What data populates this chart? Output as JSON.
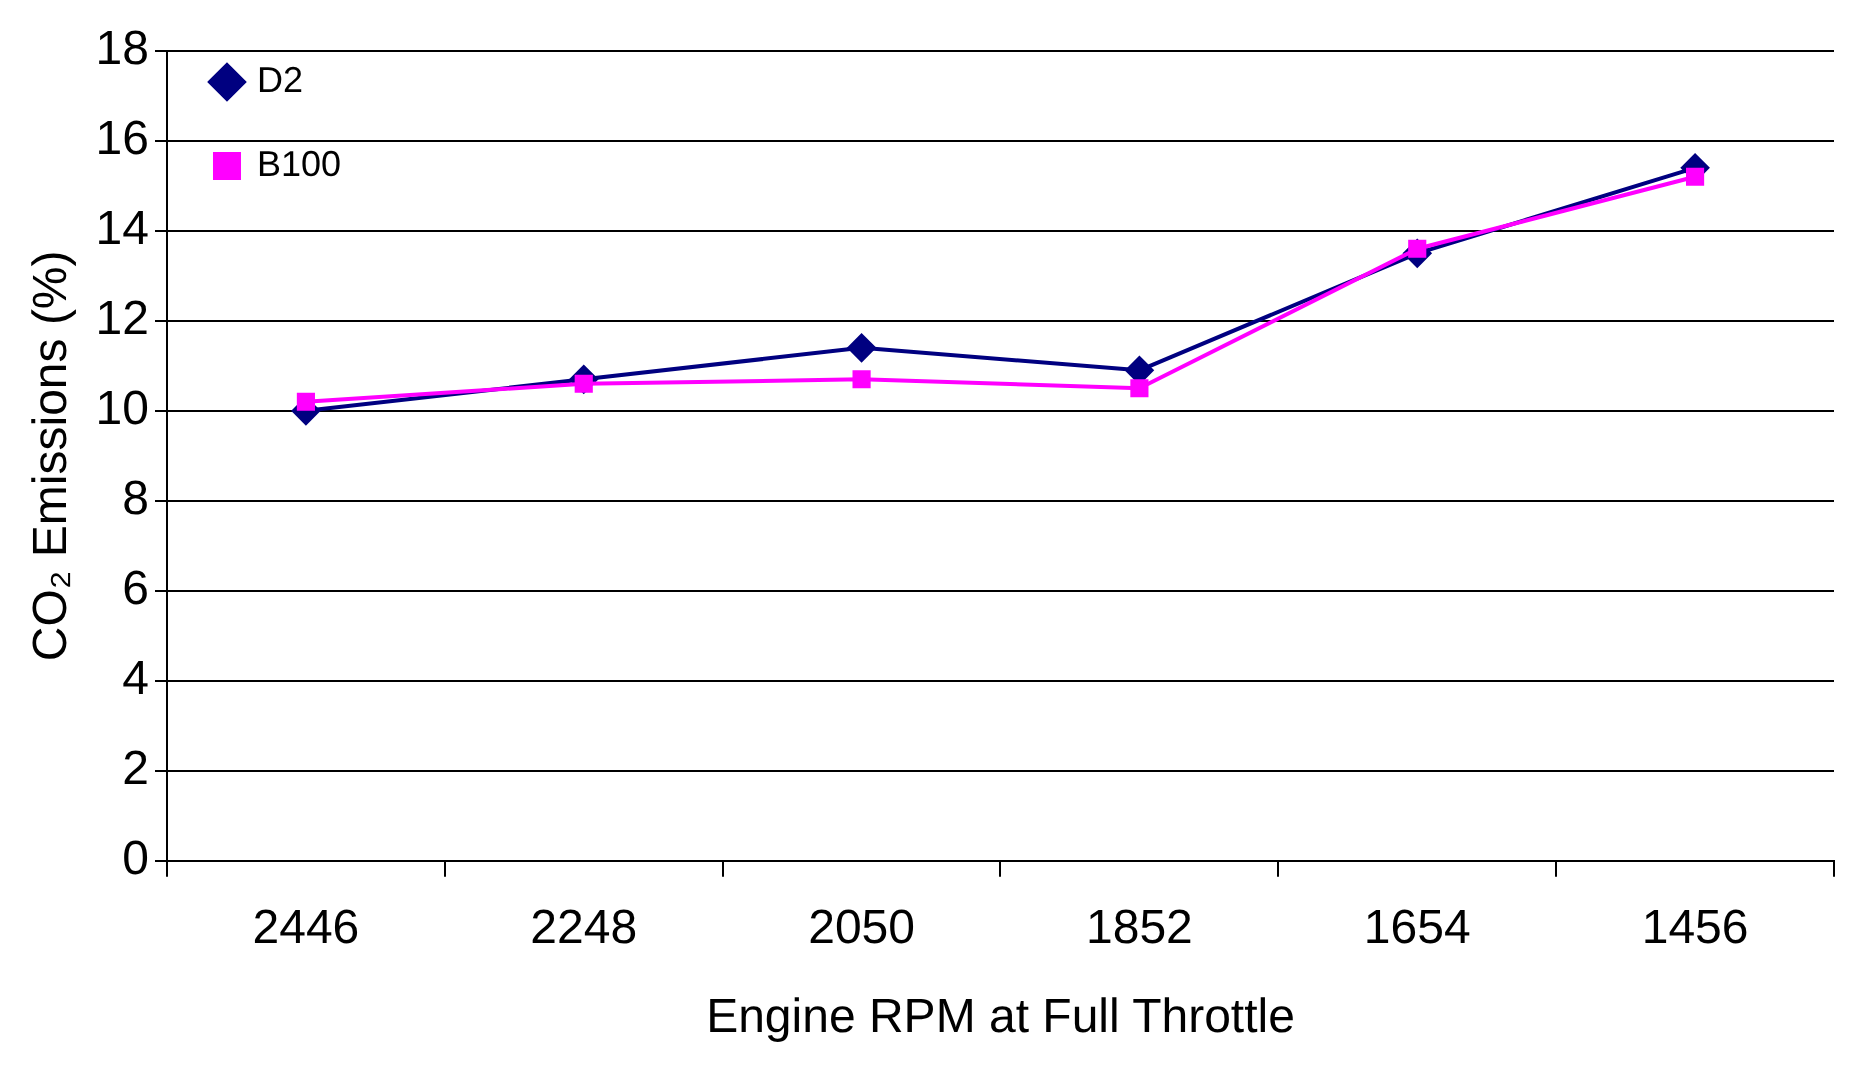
{
  "chart_data": {
    "type": "line",
    "xlabel": "Engine RPM at Full Throttle",
    "ylabel": "CO₂ Emissions (%)",
    "categories": [
      "2446",
      "2248",
      "2050",
      "1852",
      "1654",
      "1456"
    ],
    "series": [
      {
        "name": "D2",
        "color": "#000080",
        "marker": "diamond",
        "values": [
          10.0,
          10.7,
          11.4,
          10.9,
          13.5,
          15.4
        ]
      },
      {
        "name": "B100",
        "color": "#ff00ff",
        "marker": "square",
        "values": [
          10.2,
          10.6,
          10.7,
          10.5,
          13.6,
          15.2
        ]
      }
    ],
    "ylim": [
      0,
      18
    ],
    "yticks": [
      0,
      2,
      4,
      6,
      8,
      10,
      12,
      14,
      16,
      18
    ],
    "grid": "y",
    "legend": "top left",
    "line_style": "solid"
  }
}
